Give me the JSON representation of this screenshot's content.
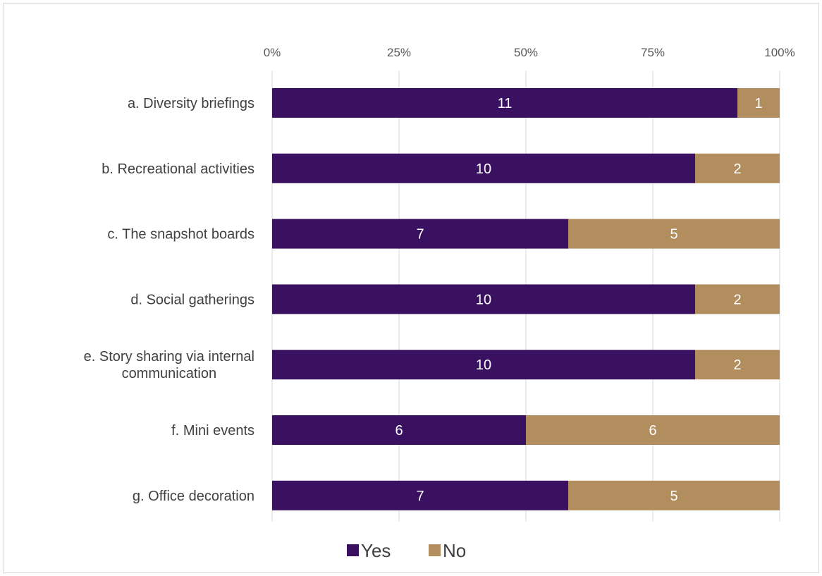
{
  "chart_data": {
    "type": "bar",
    "orientation": "horizontal",
    "stacking": "percent",
    "title": "",
    "xlabel": "",
    "ylabel": "",
    "xlim": [
      0,
      100
    ],
    "x_ticks": [
      "0%",
      "25%",
      "50%",
      "75%",
      "100%"
    ],
    "grid": true,
    "legend_position": "bottom",
    "categories": [
      [
        "a. Diversity briefings"
      ],
      [
        "b. Recreational activities"
      ],
      [
        "c. The snapshot boards"
      ],
      [
        "d. Social gatherings"
      ],
      [
        "e. Story sharing via internal",
        "communication"
      ],
      [
        "f. Mini events"
      ],
      [
        "g. Office decoration"
      ]
    ],
    "series": [
      {
        "name": "Yes",
        "color": "#3a1160",
        "values": [
          11,
          10,
          7,
          10,
          10,
          6,
          7
        ]
      },
      {
        "name": "No",
        "color": "#b28e5e",
        "values": [
          1,
          2,
          5,
          2,
          2,
          6,
          5
        ]
      }
    ]
  }
}
